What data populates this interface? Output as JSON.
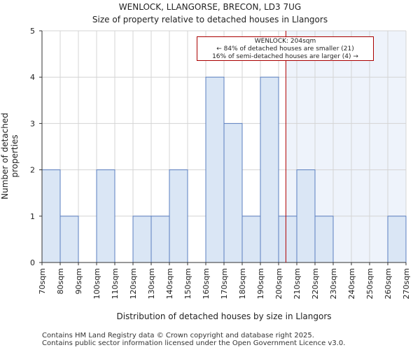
{
  "chart_data": {
    "type": "bar",
    "title": "WENLOCK, LLANGORSE, BRECON, LD3 7UG",
    "subtitle": "Size of property relative to detached houses in Llangors",
    "xlabel": "Distribution of detached houses by size in Llangors",
    "ylabel": "Number of detached properties",
    "ylim": [
      0,
      5
    ],
    "yticks": [
      "0",
      "1",
      "2",
      "3",
      "4",
      "5"
    ],
    "bin_edges": [
      "70sqm",
      "80sqm",
      "90sqm",
      "100sqm",
      "110sqm",
      "120sqm",
      "130sqm",
      "140sqm",
      "150sqm",
      "160sqm",
      "170sqm",
      "180sqm",
      "190sqm",
      "200sqm",
      "210sqm",
      "220sqm",
      "230sqm",
      "240sqm",
      "250sqm",
      "260sqm",
      "270sqm"
    ],
    "values": [
      2,
      1,
      0,
      2,
      0,
      1,
      1,
      2,
      0,
      4,
      3,
      1,
      4,
      1,
      2,
      1,
      0,
      0,
      0,
      1
    ],
    "marker": {
      "label": "WENLOCK: 204sqm",
      "value": 204
    },
    "annotation": {
      "line1": "WENLOCK: 204sqm",
      "line2": "← 84% of detached houses are smaller (21)",
      "line3": "16% of semi-detached houses are larger (4) →"
    },
    "colors": {
      "bar_fill": "#dae6f5",
      "bar_edge": "#5b7fc0",
      "marker": "#b00000",
      "shade": "#eef3fb"
    },
    "grid": true
  },
  "footer": {
    "line1": "Contains HM Land Registry data © Crown copyright and database right 2025.",
    "line2": "Contains public sector information licensed under the Open Government Licence v3.0."
  }
}
